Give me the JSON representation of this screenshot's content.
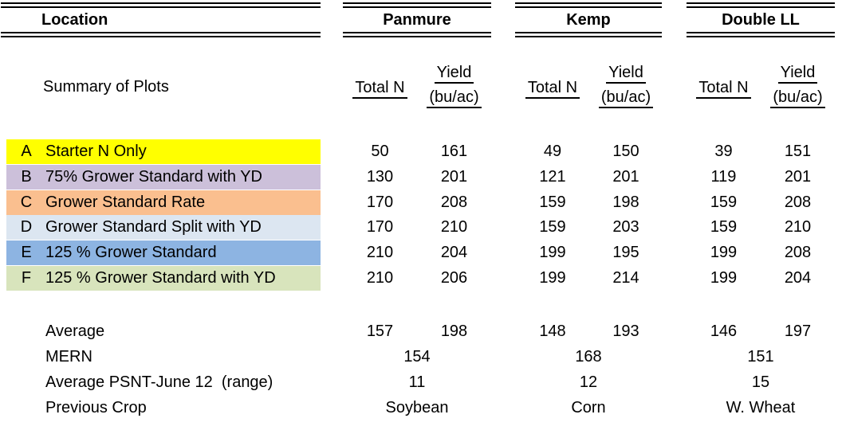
{
  "table": {
    "header": {
      "location_label": "Location",
      "locations": [
        "Panmure",
        "Kemp",
        "Double LL"
      ]
    },
    "summary_label": "Summary of Plots",
    "column_headers": {
      "total_n": "Total N",
      "yield_line1": "Yield",
      "yield_line2": "(bu/ac)"
    },
    "treatments": [
      {
        "code": "A",
        "label": "Starter N Only",
        "highlight": "#FFFF00",
        "values": [
          50,
          161,
          49,
          150,
          39,
          151
        ]
      },
      {
        "code": "B",
        "label": "75% Grower Standard with YD",
        "highlight": "#CCC0DA",
        "values": [
          130,
          201,
          121,
          201,
          119,
          201
        ]
      },
      {
        "code": "C",
        "label": "Grower Standard Rate",
        "highlight": "#FABF8F",
        "values": [
          170,
          208,
          159,
          198,
          159,
          208
        ]
      },
      {
        "code": "D",
        "label": "Grower Standard Split with YD",
        "highlight": "#DCE6F1",
        "values": [
          170,
          210,
          159,
          203,
          159,
          210
        ]
      },
      {
        "code": "E",
        "label": "125 % Grower Standard",
        "highlight": "#8DB4E2",
        "values": [
          210,
          204,
          199,
          195,
          199,
          208
        ]
      },
      {
        "code": "F",
        "label": "125 % Grower Standard with YD",
        "highlight": "#D8E4BC",
        "values": [
          210,
          206,
          199,
          214,
          199,
          204
        ]
      }
    ],
    "footer": {
      "average": {
        "label": "Average",
        "values": [
          157,
          198,
          148,
          193,
          146,
          197
        ]
      },
      "mern": {
        "label": "MERN",
        "values": [
          154,
          168,
          151
        ]
      },
      "psnt": {
        "label": "Average PSNT-June 12  (range)",
        "values": [
          11,
          12,
          15
        ]
      },
      "previous_crop": {
        "label": "Previous Crop",
        "values": [
          "Soybean",
          "Corn",
          "W. Wheat"
        ]
      }
    }
  }
}
